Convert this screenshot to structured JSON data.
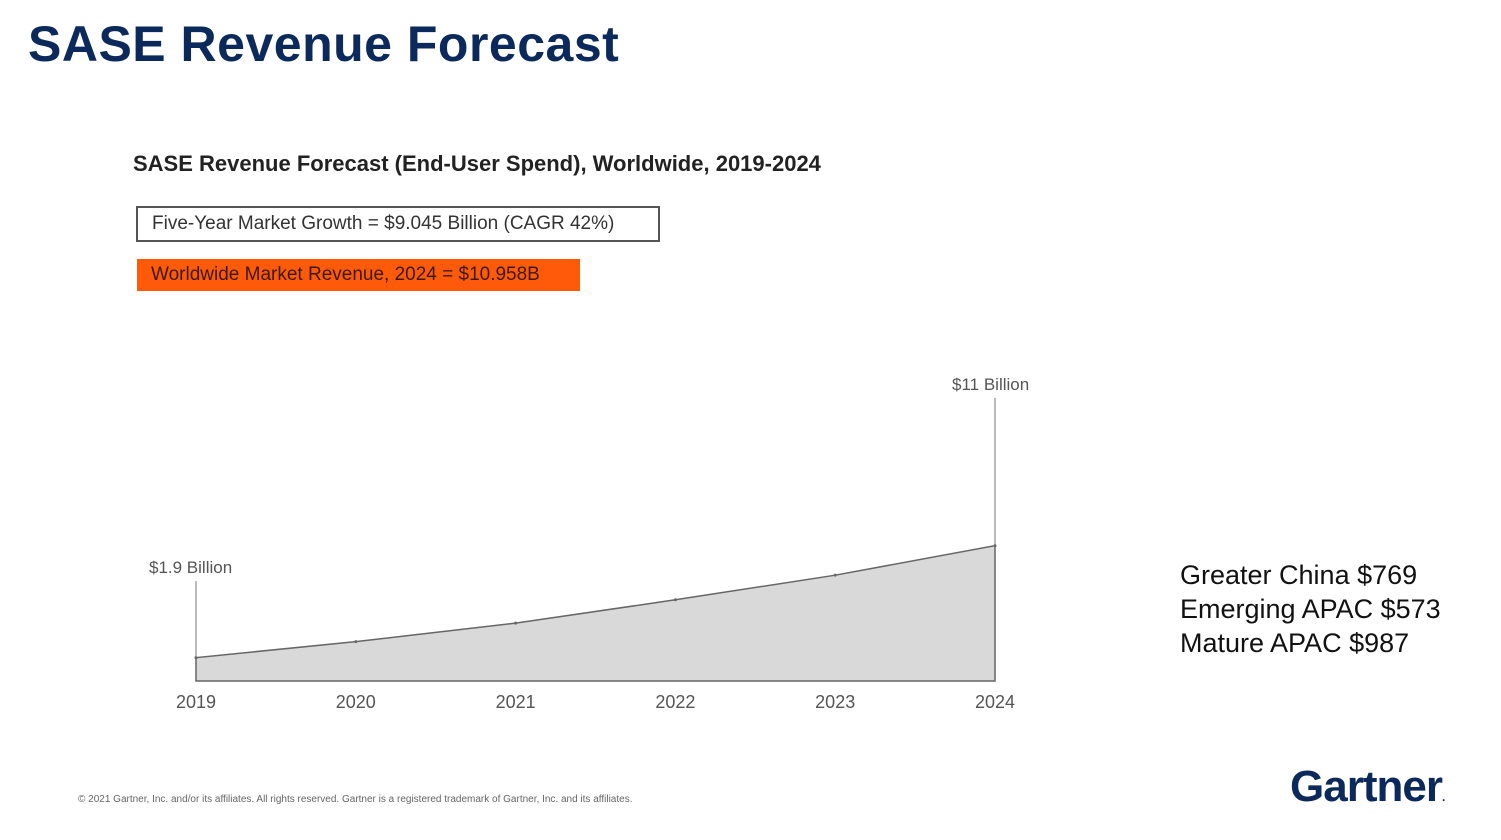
{
  "slide": {
    "title": "SASE Revenue Forecast",
    "footer": "© 2021 Gartner, Inc. and/or its affiliates. All rights reserved. Gartner is a registered trademark of Gartner, Inc. and its affiliates.",
    "logo": "Gartner",
    "logo_mark": "."
  },
  "callouts": {
    "growth": "Five-Year Market Growth = $9.045 Billion (CAGR 42%)",
    "revenue_2024": "Worldwide Market Revenue, 2024 = $10.958B"
  },
  "regions": [
    "Greater China $769",
    "Emerging APAC $573",
    "Mature APAC $987"
  ],
  "colors": {
    "title": "#0b2a5b",
    "highlight": "#ff5a0a",
    "area_fill": "#d9d9d9",
    "area_stroke": "#666666"
  },
  "chart_data": {
    "type": "area",
    "title": "SASE Revenue Forecast (End-User Spend), Worldwide, 2019-2024",
    "xlabel": "",
    "ylabel": "",
    "x": [
      "2019",
      "2020",
      "2021",
      "2022",
      "2023",
      "2024"
    ],
    "values": [
      1.9,
      3.2,
      4.7,
      6.6,
      8.6,
      11.0
    ],
    "ylim": [
      0,
      23
    ],
    "grid": false,
    "annotations": [
      {
        "x": "2019",
        "text": "$1.9 Billion"
      },
      {
        "x": "2024",
        "text": "$11 Billion"
      }
    ]
  }
}
